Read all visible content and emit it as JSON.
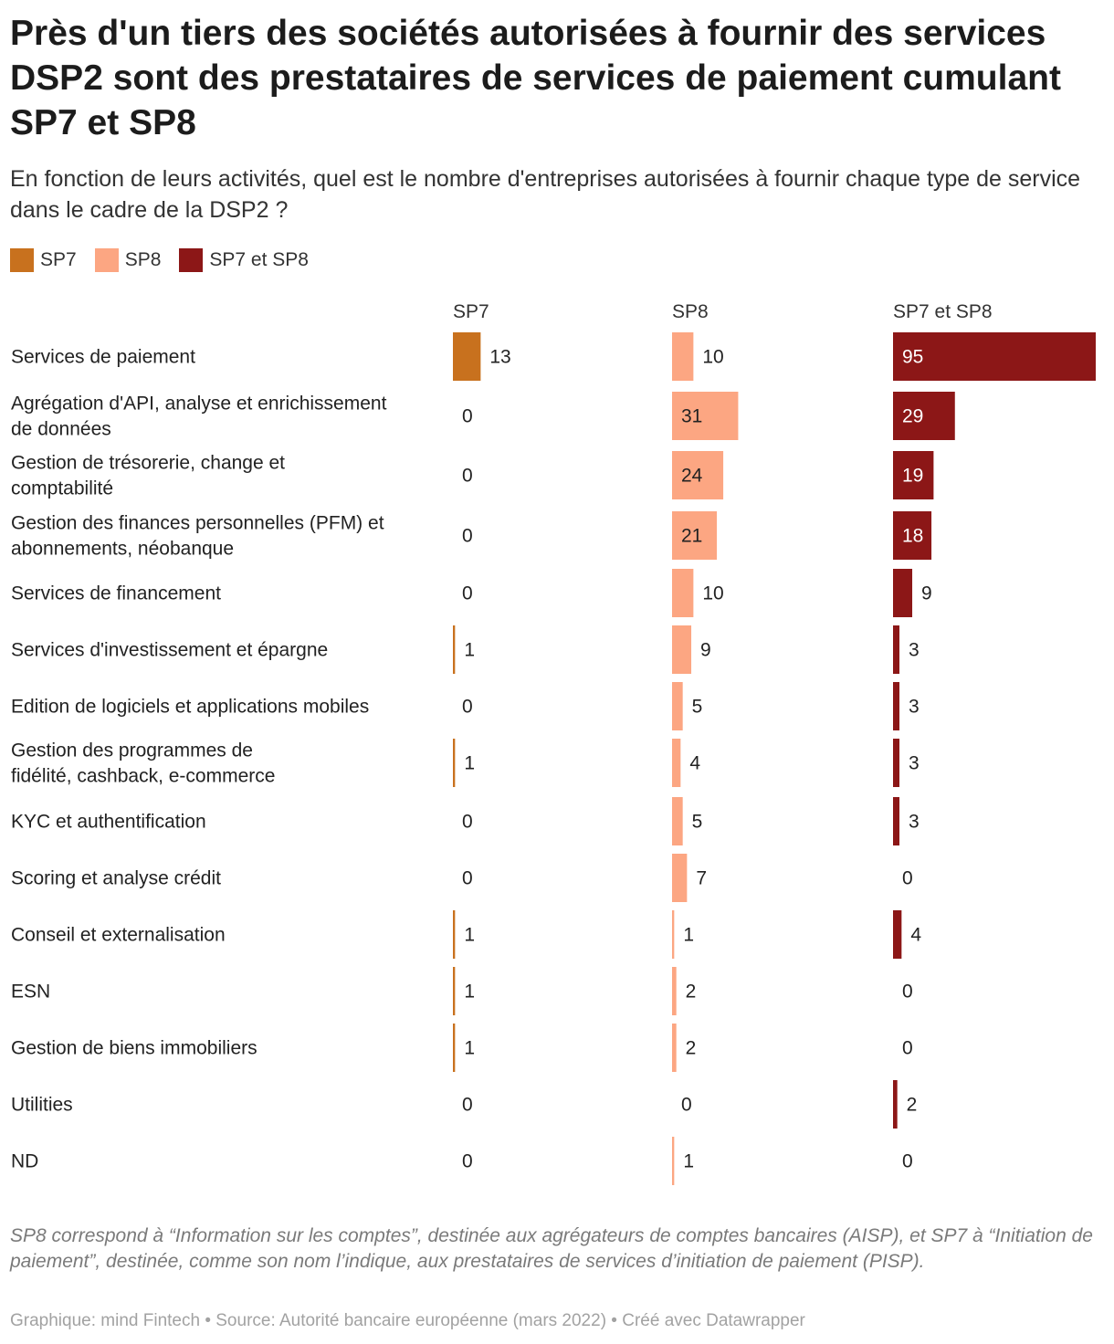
{
  "header": {
    "title": "Près d'un tiers des sociétés autorisées à fournir des services DSP2 sont des prestataires de services de paiement cumulant SP7 et SP8",
    "subtitle": "En fonction de leurs activités, quel est le nombre d'entreprises autorisées à fournir chaque type de service dans le cadre de la DSP2 ?"
  },
  "legend": {
    "items": [
      {
        "label": "SP7",
        "color": "#c8711e"
      },
      {
        "label": "SP8",
        "color": "#fca682"
      },
      {
        "label": "SP7 et SP8",
        "color": "#8c1717"
      }
    ]
  },
  "chart_data": {
    "type": "bar",
    "orientation": "horizontal",
    "layout": "small-multiples-columns",
    "max_value": 95,
    "categories": [
      "Services de paiement",
      "Agrégation d'API, analyse et enrichissement de données",
      "Gestion de trésorerie, change et comptabilité",
      "Gestion des finances personnelles (PFM) et abonnements, néobanque",
      "Services de financement",
      "Services d'investissement et épargne",
      "Edition de logiciels et applications mobiles",
      "Gestion des programmes de fidélité, cashback, e-commerce",
      "KYC et authentification",
      "Scoring et analyse crédit",
      "Conseil et externalisation",
      "ESN",
      "Gestion de biens immobiliers",
      "Utilities",
      "ND"
    ],
    "series": [
      {
        "name": "SP7",
        "color": "#c8711e",
        "values": [
          13,
          0,
          0,
          0,
          0,
          1,
          0,
          1,
          0,
          0,
          1,
          1,
          1,
          0,
          0
        ]
      },
      {
        "name": "SP8",
        "color": "#fca682",
        "values": [
          10,
          31,
          24,
          21,
          10,
          9,
          5,
          4,
          5,
          7,
          1,
          2,
          2,
          0,
          1
        ]
      },
      {
        "name": "SP7 et SP8",
        "color": "#8c1717",
        "values": [
          95,
          29,
          19,
          18,
          9,
          3,
          3,
          3,
          3,
          0,
          4,
          0,
          0,
          2,
          0
        ]
      }
    ]
  },
  "footer": {
    "note": "SP8 correspond à “Information sur les comptes”, destinée aux agrégateurs de comptes bancaires (AISP), et SP7 à “Initiation de paiement”, destinée, comme son nom l’indique, aux prestataires de services d’initiation de paiement (PISP).",
    "credits": "Graphique: mind Fintech • Source: Autorité bancaire européenne (mars 2022) • Créé avec Datawrapper"
  }
}
